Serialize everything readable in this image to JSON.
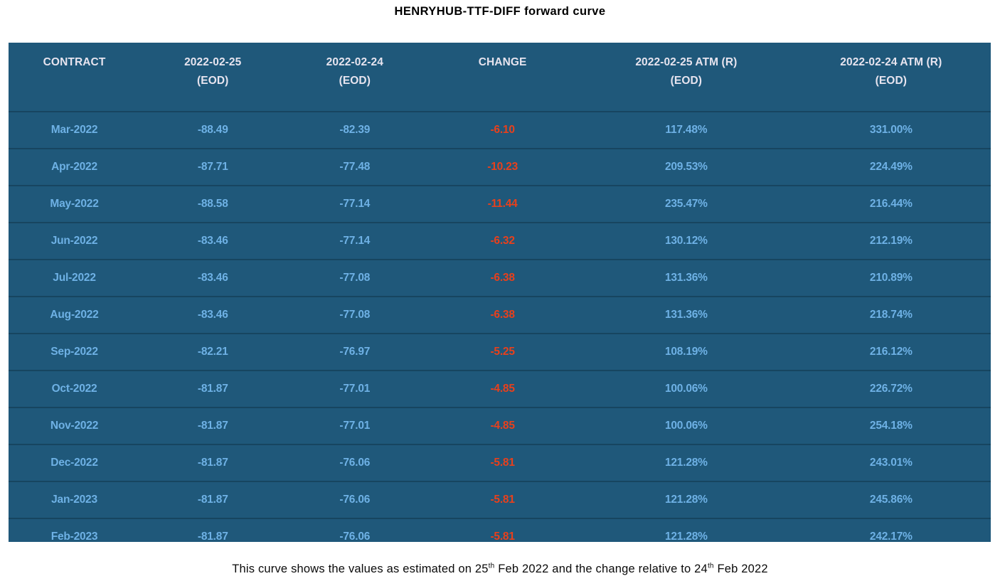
{
  "title": "HENRYHUB-TTF-DIFF forward curve",
  "chart_data": {
    "type": "table",
    "title": "HENRYHUB-TTF-DIFF forward curve",
    "columns": [
      {
        "key": "contract",
        "label": "CONTRACT",
        "sub": ""
      },
      {
        "key": "eod_2022_02_25",
        "label": "2022-02-25",
        "sub": "(EOD)"
      },
      {
        "key": "eod_2022_02_24",
        "label": "2022-02-24",
        "sub": "(EOD)"
      },
      {
        "key": "change",
        "label": "CHANGE",
        "sub": ""
      },
      {
        "key": "atm_2022_02_25",
        "label": "2022-02-25 ATM (R)",
        "sub": "(EOD)"
      },
      {
        "key": "atm_2022_02_24",
        "label": "2022-02-24 ATM (R)",
        "sub": "(EOD)"
      }
    ],
    "rows": [
      {
        "contract": "Mar-2022",
        "eod_2022_02_25": "-88.49",
        "eod_2022_02_24": "-82.39",
        "change": "-6.10",
        "atm_2022_02_25": "117.48%",
        "atm_2022_02_24": "331.00%"
      },
      {
        "contract": "Apr-2022",
        "eod_2022_02_25": "-87.71",
        "eod_2022_02_24": "-77.48",
        "change": "-10.23",
        "atm_2022_02_25": "209.53%",
        "atm_2022_02_24": "224.49%"
      },
      {
        "contract": "May-2022",
        "eod_2022_02_25": "-88.58",
        "eod_2022_02_24": "-77.14",
        "change": "-11.44",
        "atm_2022_02_25": "235.47%",
        "atm_2022_02_24": "216.44%"
      },
      {
        "contract": "Jun-2022",
        "eod_2022_02_25": "-83.46",
        "eod_2022_02_24": "-77.14",
        "change": "-6.32",
        "atm_2022_02_25": "130.12%",
        "atm_2022_02_24": "212.19%"
      },
      {
        "contract": "Jul-2022",
        "eod_2022_02_25": "-83.46",
        "eod_2022_02_24": "-77.08",
        "change": "-6.38",
        "atm_2022_02_25": "131.36%",
        "atm_2022_02_24": "210.89%"
      },
      {
        "contract": "Aug-2022",
        "eod_2022_02_25": "-83.46",
        "eod_2022_02_24": "-77.08",
        "change": "-6.38",
        "atm_2022_02_25": "131.36%",
        "atm_2022_02_24": "218.74%"
      },
      {
        "contract": "Sep-2022",
        "eod_2022_02_25": "-82.21",
        "eod_2022_02_24": "-76.97",
        "change": "-5.25",
        "atm_2022_02_25": "108.19%",
        "atm_2022_02_24": "216.12%"
      },
      {
        "contract": "Oct-2022",
        "eod_2022_02_25": "-81.87",
        "eod_2022_02_24": "-77.01",
        "change": "-4.85",
        "atm_2022_02_25": "100.06%",
        "atm_2022_02_24": "226.72%"
      },
      {
        "contract": "Nov-2022",
        "eod_2022_02_25": "-81.87",
        "eod_2022_02_24": "-77.01",
        "change": "-4.85",
        "atm_2022_02_25": "100.06%",
        "atm_2022_02_24": "254.18%"
      },
      {
        "contract": "Dec-2022",
        "eod_2022_02_25": "-81.87",
        "eod_2022_02_24": "-76.06",
        "change": "-5.81",
        "atm_2022_02_25": "121.28%",
        "atm_2022_02_24": "243.01%"
      },
      {
        "contract": "Jan-2023",
        "eod_2022_02_25": "-81.87",
        "eod_2022_02_24": "-76.06",
        "change": "-5.81",
        "atm_2022_02_25": "121.28%",
        "atm_2022_02_24": "245.86%"
      },
      {
        "contract": "Feb-2023",
        "eod_2022_02_25": "-81.87",
        "eod_2022_02_24": "-76.06",
        "change": "-5.81",
        "atm_2022_02_25": "121.28%",
        "atm_2022_02_24": "242.17%"
      }
    ]
  },
  "footnote": {
    "part1": "This curve shows the values as estimated on 25",
    "sup1": "th",
    "part2": " Feb 2022 and the change relative to 24",
    "sup2": "th",
    "part3": " Feb 2022"
  },
  "colors": {
    "table_background": "#1F587A",
    "row_separator": "#174560",
    "header_text": "#E7E4EF",
    "value_text": "#6EB1E5",
    "change_negative": "#E8401C",
    "title_text": "#000000"
  }
}
